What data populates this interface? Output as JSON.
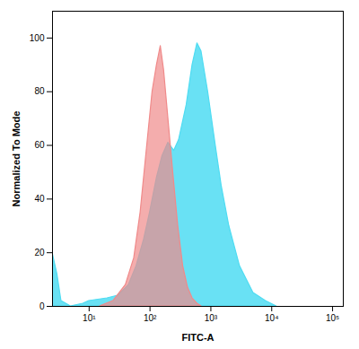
{
  "chart_data": {
    "type": "area",
    "x_label": "FITC-A",
    "y_label": "Normalized To Mode",
    "log": "x",
    "xlim": [
      2.5,
      150000
    ],
    "ylim": [
      0,
      110
    ],
    "xticks": [
      {
        "value": 10,
        "label": "10¹"
      },
      {
        "value": 100,
        "label": "10²"
      },
      {
        "value": 1000,
        "label": "10³"
      },
      {
        "value": 10000,
        "label": "10⁴"
      },
      {
        "value": 100000,
        "label": "10⁵"
      }
    ],
    "yticks": [
      0,
      20,
      40,
      60,
      80,
      100
    ],
    "series": [
      {
        "color": "#4fdcf2",
        "x": [
          2.5,
          3,
          3.5,
          5,
          8,
          10,
          20,
          30,
          45,
          60,
          80,
          100,
          130,
          160,
          200,
          250,
          300,
          400,
          500,
          600,
          700,
          900,
          1200,
          1500,
          2000,
          3000,
          5000,
          8000,
          12000
        ],
        "values": [
          20,
          12,
          2,
          0,
          1,
          2,
          3,
          4,
          8,
          15,
          25,
          35,
          48,
          56,
          61,
          58,
          62,
          75,
          90,
          98,
          95,
          80,
          60,
          45,
          30,
          15,
          5,
          2,
          0
        ]
      },
      {
        "color": "#f08a8a",
        "x": [
          15,
          25,
          40,
          55,
          70,
          90,
          110,
          130,
          150,
          170,
          200,
          240,
          290,
          350,
          420,
          500,
          600,
          700
        ],
        "values": [
          0,
          2,
          8,
          18,
          35,
          60,
          80,
          90,
          97,
          88,
          70,
          50,
          30,
          15,
          7,
          3,
          1,
          0
        ]
      }
    ]
  }
}
